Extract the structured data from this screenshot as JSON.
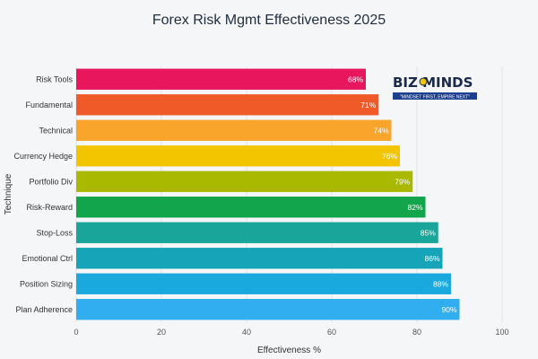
{
  "chart_data": {
    "type": "bar",
    "orientation": "horizontal",
    "title": "Forex Risk Mgmt Effectiveness 2025",
    "xlabel": "Effectiveness %",
    "ylabel": "Technique",
    "xlim": [
      0,
      100
    ],
    "xticks": [
      0,
      20,
      40,
      60,
      80,
      100
    ],
    "grid": true,
    "categories": [
      "Risk Tools",
      "Fundamental",
      "Technical",
      "Currency Hedge",
      "Portfolio Div",
      "Risk-Reward",
      "Stop-Loss",
      "Emotional Ctrl",
      "Position Sizing",
      "Plan Adherence"
    ],
    "values": [
      68,
      71,
      74,
      76,
      79,
      82,
      85,
      86,
      88,
      90
    ],
    "value_labels": [
      "68%",
      "71%",
      "74%",
      "76%",
      "79%",
      "82%",
      "85%",
      "86%",
      "88%",
      "90%"
    ],
    "colors": [
      "#e8175d",
      "#f05a28",
      "#f9a52b",
      "#f2c500",
      "#a8b900",
      "#13a54b",
      "#1aa59a",
      "#16a5b8",
      "#19a9de",
      "#30aef0"
    ]
  },
  "logo": {
    "name": "BIZMINDS",
    "part1": "BIZ",
    "part2": "MINDS",
    "tagline": "\"MINDSET FIRST, EMPIRE NEXT\""
  }
}
